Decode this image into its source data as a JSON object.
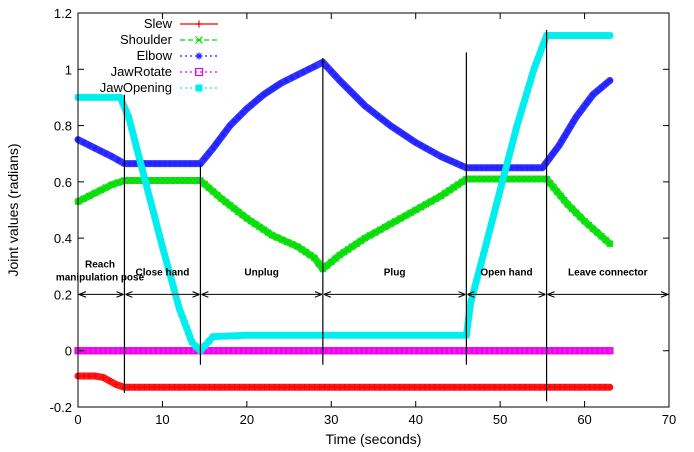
{
  "chart_data": {
    "type": "line",
    "title": "",
    "xlabel": "Time (seconds)",
    "ylabel": "Joint values (radians)",
    "xlim": [
      0,
      70
    ],
    "ylim": [
      -0.2,
      1.2
    ],
    "xticks": [
      "0",
      "10",
      "20",
      "30",
      "40",
      "50",
      "60",
      "70"
    ],
    "yticks": [
      "-0.2",
      "0",
      "0.2",
      "0.4",
      "0.6",
      "0.8",
      "1",
      "1.2"
    ],
    "grid": false,
    "legend_position": "top-left",
    "series": [
      {
        "name": "Slew",
        "color": "#ff0000",
        "marker": "plus",
        "points": [
          [
            0,
            -0.09
          ],
          [
            2,
            -0.09
          ],
          [
            3,
            -0.095
          ],
          [
            4.5,
            -0.12
          ],
          [
            5.5,
            -0.13
          ],
          [
            63,
            -0.13
          ]
        ]
      },
      {
        "name": "Shoulder",
        "color": "#00dd00",
        "marker": "x",
        "points": [
          [
            0,
            0.53
          ],
          [
            2,
            0.56
          ],
          [
            4,
            0.59
          ],
          [
            5.5,
            0.605
          ],
          [
            14.5,
            0.605
          ],
          [
            17,
            0.54
          ],
          [
            20,
            0.47
          ],
          [
            23,
            0.41
          ],
          [
            26,
            0.37
          ],
          [
            28,
            0.33
          ],
          [
            29,
            0.29
          ],
          [
            31,
            0.34
          ],
          [
            34,
            0.4
          ],
          [
            37,
            0.45
          ],
          [
            40,
            0.5
          ],
          [
            43,
            0.55
          ],
          [
            46,
            0.61
          ],
          [
            55.5,
            0.61
          ],
          [
            58,
            0.52
          ],
          [
            60,
            0.46
          ],
          [
            63,
            0.38
          ]
        ]
      },
      {
        "name": "Elbow",
        "color": "#2222ff",
        "marker": "star",
        "points": [
          [
            0,
            0.75
          ],
          [
            2,
            0.72
          ],
          [
            4,
            0.69
          ],
          [
            5.5,
            0.665
          ],
          [
            14.5,
            0.665
          ],
          [
            16,
            0.72
          ],
          [
            18,
            0.8
          ],
          [
            20,
            0.86
          ],
          [
            22,
            0.91
          ],
          [
            24,
            0.95
          ],
          [
            26,
            0.98
          ],
          [
            28,
            1.01
          ],
          [
            29,
            1.025
          ],
          [
            31,
            0.96
          ],
          [
            34,
            0.87
          ],
          [
            37,
            0.8
          ],
          [
            40,
            0.74
          ],
          [
            43,
            0.69
          ],
          [
            46,
            0.65
          ],
          [
            55,
            0.65
          ],
          [
            57,
            0.73
          ],
          [
            59,
            0.83
          ],
          [
            61,
            0.91
          ],
          [
            63,
            0.96
          ]
        ]
      },
      {
        "name": "JawRotate",
        "color": "#ee00ee",
        "marker": "square-open",
        "points": [
          [
            0,
            0
          ],
          [
            63,
            0
          ]
        ]
      },
      {
        "name": "JawOpening",
        "color": "#00eeee",
        "marker": "square-filled",
        "points": [
          [
            0,
            0.9
          ],
          [
            5,
            0.9
          ],
          [
            6,
            0.83
          ],
          [
            8,
            0.6
          ],
          [
            10,
            0.37
          ],
          [
            12,
            0.15
          ],
          [
            13.5,
            0.03
          ],
          [
            14.5,
            0.0
          ],
          [
            16,
            0.05
          ],
          [
            20,
            0.055
          ],
          [
            46,
            0.055
          ],
          [
            46.5,
            0.17
          ],
          [
            48,
            0.34
          ],
          [
            50,
            0.57
          ],
          [
            52,
            0.8
          ],
          [
            54,
            1.0
          ],
          [
            55.5,
            1.12
          ],
          [
            63,
            1.12
          ]
        ]
      }
    ],
    "phase_lines_x": [
      5.5,
      14.5,
      29,
      46,
      55.5
    ],
    "phases": [
      {
        "label": "Reach manipulation pose",
        "line1": "Reach",
        "line2": "manipulation pose",
        "start": 0,
        "end": 5.5
      },
      {
        "label": "Close hand",
        "line1": "Close hand",
        "line2": "",
        "start": 5.5,
        "end": 14.5
      },
      {
        "label": "Unplug",
        "line1": "Unplug",
        "line2": "",
        "start": 14.5,
        "end": 29
      },
      {
        "label": "Plug",
        "line1": "Plug",
        "line2": "",
        "start": 29,
        "end": 46
      },
      {
        "label": "Open hand",
        "line1": "Open hand",
        "line2": "",
        "start": 46,
        "end": 55.5
      },
      {
        "label": "Leave connector",
        "line1": "Leave connector",
        "line2": "",
        "start": 55.5,
        "end": 70
      }
    ],
    "phase_arrow_y": 0.2
  }
}
